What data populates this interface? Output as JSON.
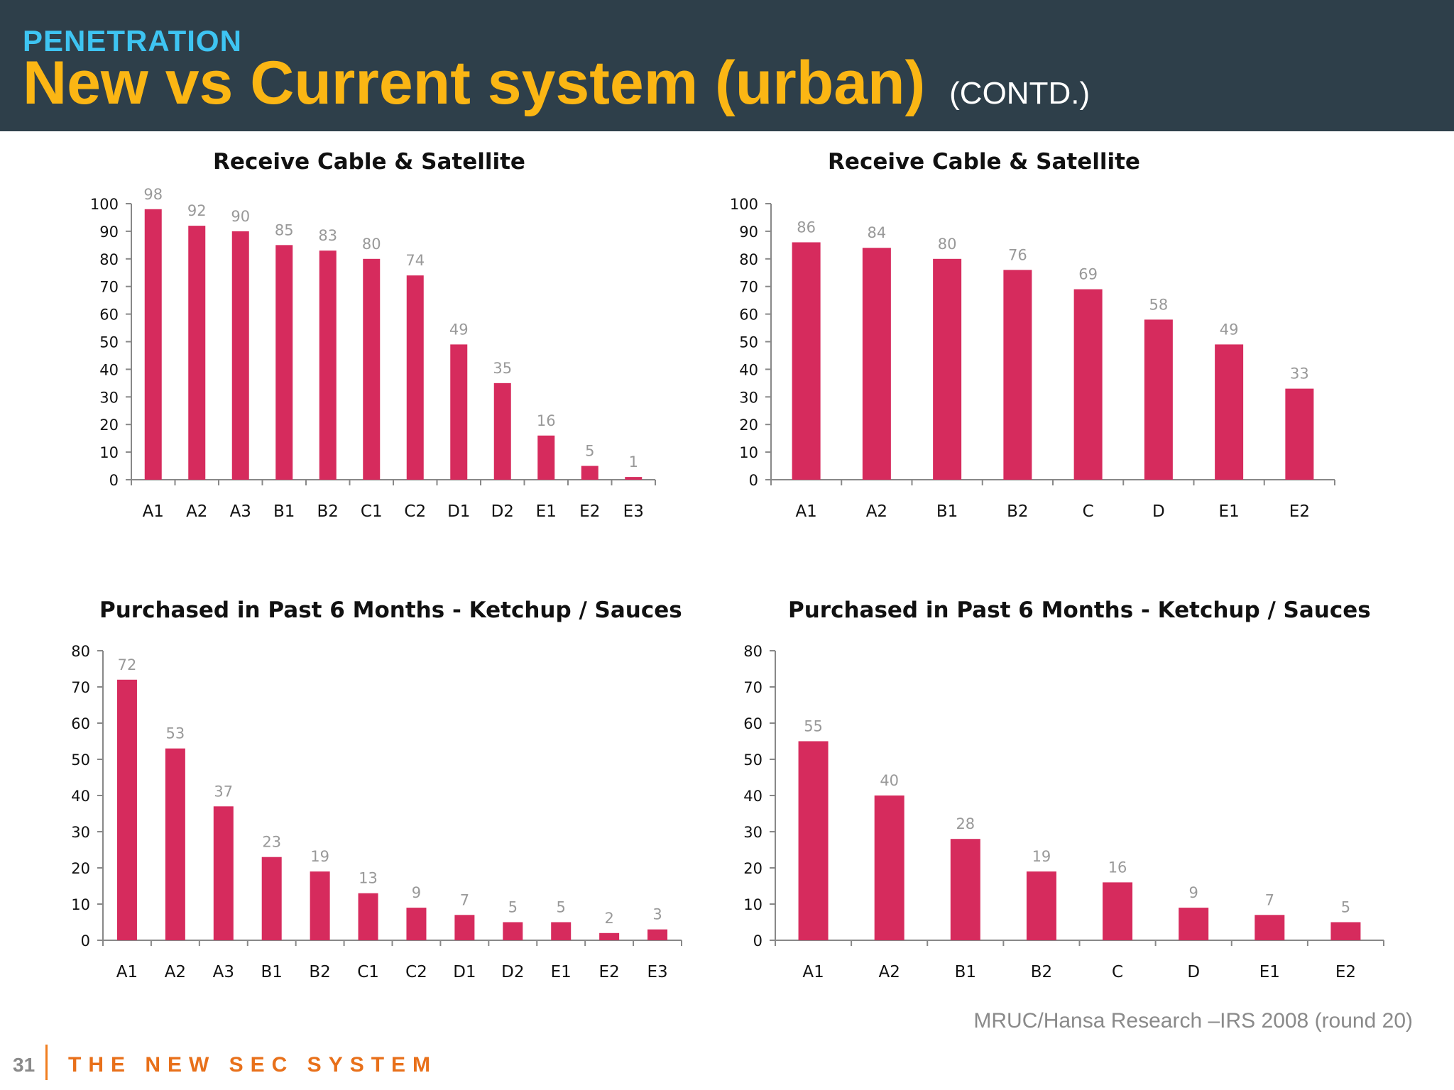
{
  "header": {
    "kicker": "PENETRATION",
    "title": "New vs Current system (urban)",
    "title_suffix": "(CONTD.)"
  },
  "colors": {
    "bar": "#d62b5d",
    "value_label": "#999999",
    "axis": "#888888"
  },
  "chart_data": [
    {
      "type": "bar",
      "title": "Receive Cable & Satellite",
      "categories": [
        "A1",
        "A2",
        "A3",
        "B1",
        "B2",
        "C1",
        "C2",
        "D1",
        "D2",
        "E1",
        "E2",
        "E3"
      ],
      "values": [
        98,
        92,
        90,
        85,
        83,
        80,
        74,
        49,
        35,
        16,
        5,
        1
      ],
      "ylim": [
        0,
        100
      ],
      "yticks": [
        0,
        10,
        20,
        30,
        40,
        50,
        60,
        70,
        80,
        90,
        100
      ],
      "grid": false,
      "data_labels": true
    },
    {
      "type": "bar",
      "title": "Receive Cable & Satellite",
      "categories": [
        "A1",
        "A2",
        "B1",
        "B2",
        "C",
        "D",
        "E1",
        "E2"
      ],
      "values": [
        86,
        84,
        80,
        76,
        69,
        58,
        49,
        33
      ],
      "ylim": [
        0,
        100
      ],
      "yticks": [
        0,
        10,
        20,
        30,
        40,
        50,
        60,
        70,
        80,
        90,
        100
      ],
      "grid": false,
      "data_labels": true
    },
    {
      "type": "bar",
      "title": "Purchased in Past 6 Months - Ketchup / Sauces",
      "categories": [
        "A1",
        "A2",
        "A3",
        "B1",
        "B2",
        "C1",
        "C2",
        "D1",
        "D2",
        "E1",
        "E2",
        "E3"
      ],
      "values": [
        72,
        53,
        37,
        23,
        19,
        13,
        9,
        7,
        5,
        5,
        2,
        3
      ],
      "ylim": [
        0,
        80
      ],
      "yticks": [
        0,
        10,
        20,
        30,
        40,
        50,
        60,
        70,
        80
      ],
      "grid": false,
      "data_labels": true
    },
    {
      "type": "bar",
      "title": "Purchased in Past 6 Months - Ketchup / Sauces",
      "categories": [
        "A1",
        "A2",
        "B1",
        "B2",
        "C",
        "D",
        "E1",
        "E2"
      ],
      "values": [
        55,
        40,
        28,
        19,
        16,
        9,
        7,
        5
      ],
      "ylim": [
        0,
        80
      ],
      "yticks": [
        0,
        10,
        20,
        30,
        40,
        50,
        60,
        70,
        80
      ],
      "grid": false,
      "data_labels": true
    }
  ],
  "source": "MRUC/Hansa Research –IRS 2008 (round 20)",
  "footer": {
    "page_number": "31",
    "text": "THE NEW SEC SYSTEM"
  }
}
